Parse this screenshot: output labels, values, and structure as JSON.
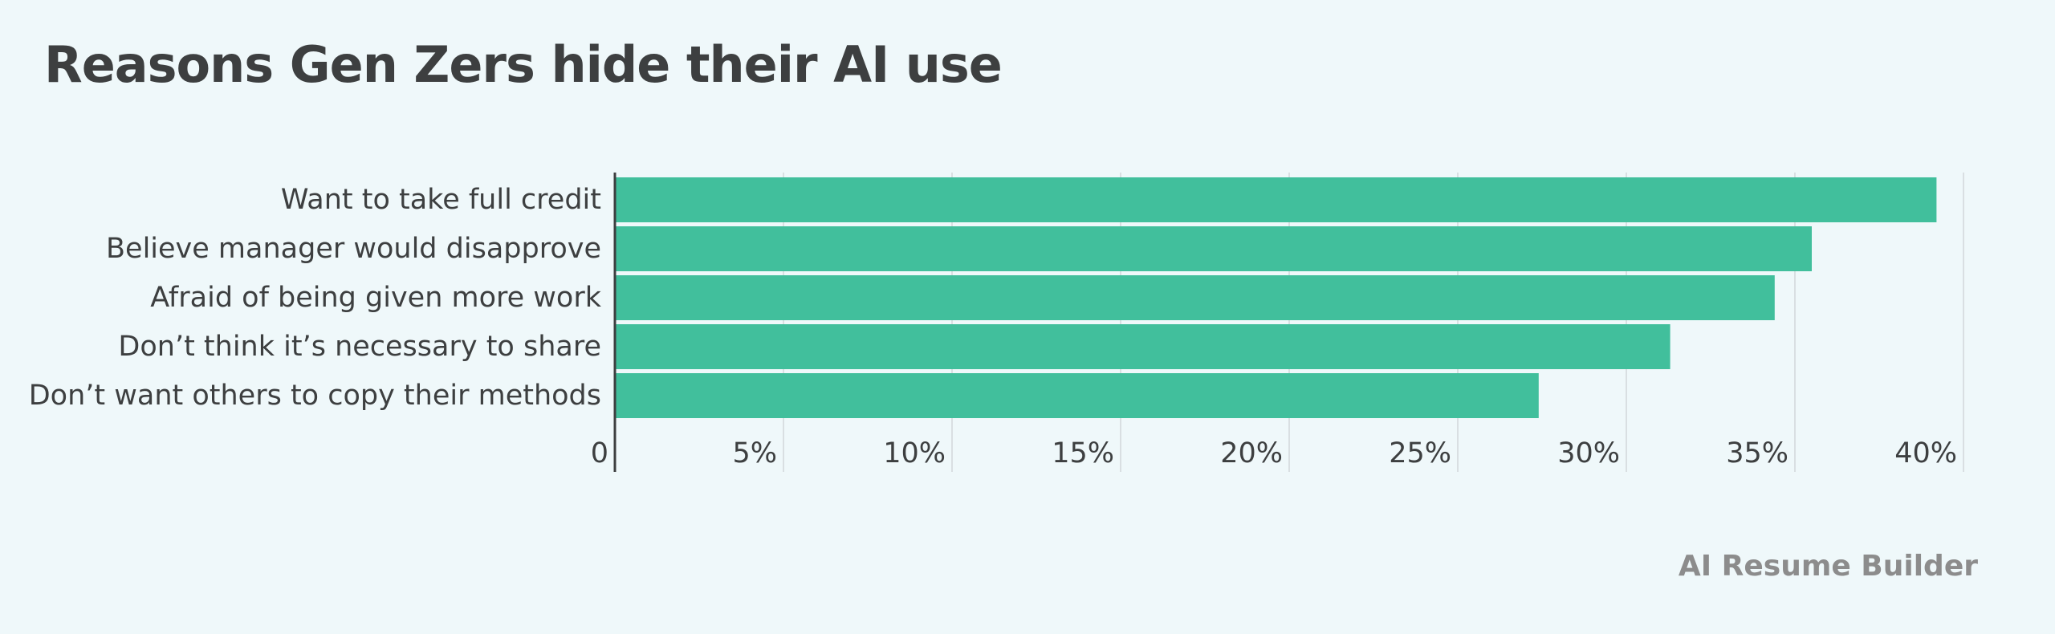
{
  "title": "Reasons Gen Zers hide their AI use",
  "source": "AI Resume Builder",
  "colors": {
    "background": "#eff8fa",
    "bar": "#41bf9c",
    "text": "#3d3f40",
    "grid": "#d9dfe2",
    "axis": "#3d3f40",
    "source": "#8c8c8c"
  },
  "chart_data": {
    "type": "bar",
    "orientation": "horizontal",
    "categories": [
      "Want to take full credit",
      "Believe manager would disapprove",
      "Afraid of being given more work",
      "Don’t think it’s necessary to share",
      "Don’t want others to copy their methods"
    ],
    "values": [
      39.2,
      35.5,
      34.4,
      31.3,
      27.4
    ],
    "xlim": [
      0,
      40
    ],
    "xticks": [
      0,
      5,
      10,
      15,
      20,
      25,
      30,
      35,
      40
    ],
    "xtick_labels": [
      "0",
      "5%",
      "10%",
      "15%",
      "20%",
      "25%",
      "30%",
      "35%",
      "40%"
    ],
    "grid": true
  }
}
